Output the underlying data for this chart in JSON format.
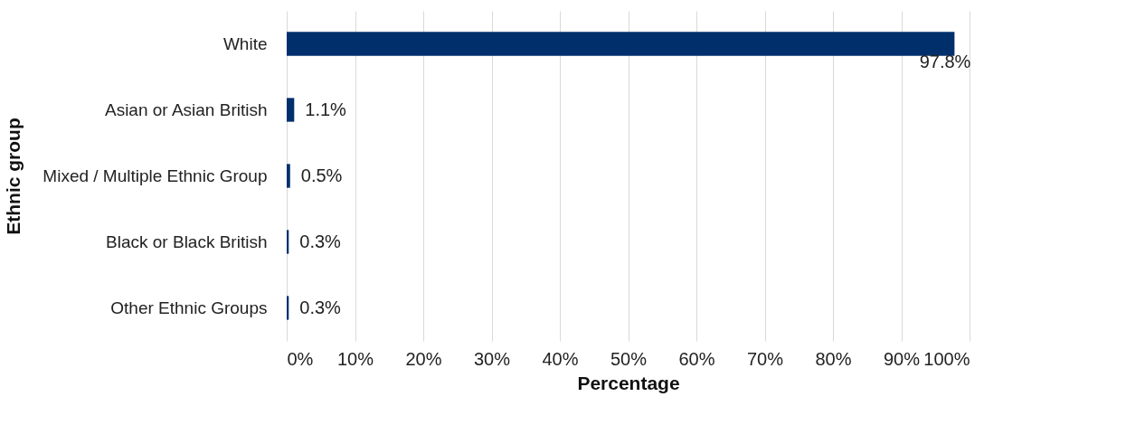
{
  "chart_data": {
    "type": "bar",
    "orientation": "horizontal",
    "xlabel": "Percentage",
    "ylabel": "Ethnic group",
    "categories": [
      "White",
      "Asian or Asian British",
      "Mixed / Multiple Ethnic Group",
      "Black or Black British",
      "Other Ethnic Groups"
    ],
    "values": [
      97.8,
      1.1,
      0.5,
      0.3,
      0.3
    ],
    "value_labels": [
      "97.8%",
      "1.1%",
      "0.5%",
      "0.3%",
      "0.3%"
    ],
    "color": "#002f6c",
    "xlim": [
      0,
      100
    ],
    "xticks": [
      {
        "value": 0,
        "label": "0%"
      },
      {
        "value": 10,
        "label": "10%"
      },
      {
        "value": 20,
        "label": "20%"
      },
      {
        "value": 30,
        "label": "30%"
      },
      {
        "value": 40,
        "label": "40%"
      },
      {
        "value": 50,
        "label": "50%"
      },
      {
        "value": 60,
        "label": "60%"
      },
      {
        "value": 70,
        "label": "70%"
      },
      {
        "value": 80,
        "label": "80%"
      },
      {
        "value": 90,
        "label": "90%"
      },
      {
        "value": 100,
        "label": "100%"
      }
    ],
    "grid": "x"
  }
}
